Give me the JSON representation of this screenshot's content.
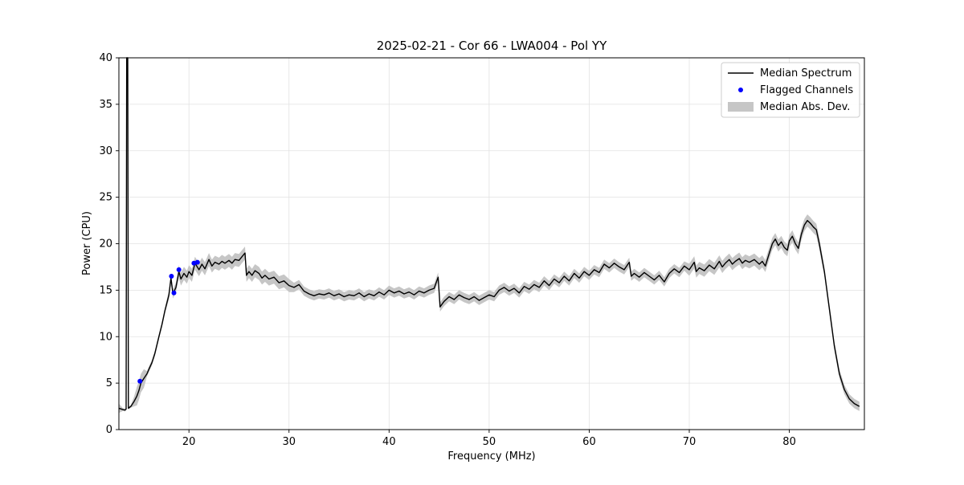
{
  "chart_data": {
    "type": "line",
    "title": "2025-02-21 - Cor 66 - LWA004 - Pol YY",
    "xlabel": "Frequency (MHz)",
    "ylabel": "Power (CPU)",
    "xlim": [
      13,
      87.5
    ],
    "ylim": [
      0,
      40
    ],
    "xticks": [
      20,
      30,
      40,
      50,
      60,
      70,
      80
    ],
    "yticks": [
      0,
      5,
      10,
      15,
      20,
      25,
      30,
      35,
      40
    ],
    "grid": true,
    "legend": {
      "position": "upper right",
      "entries": [
        "Median Spectrum",
        "Flagged Channels",
        "Median Abs. Dev."
      ]
    },
    "colors": {
      "spectrum": "#000000",
      "flagged": "#0000ff",
      "band": "#c6c6c6",
      "grid": "#e2e2e2",
      "frame": "#000000",
      "legend_border": "#cccccc"
    },
    "mad_halfwidth": 0.5,
    "mad_overrides": [
      [
        19,
        30,
        0.7
      ],
      [
        70,
        83,
        0.65
      ],
      [
        15.6,
        17.9,
        0.3
      ],
      [
        14.6,
        15.5,
        1.0
      ],
      [
        13.3,
        14.3,
        0.15
      ]
    ],
    "spectrum": [
      [
        13.0,
        2.3
      ],
      [
        13.4,
        2.15
      ],
      [
        13.6,
        2.1
      ],
      [
        13.72,
        2.2
      ],
      [
        13.78,
        40.0
      ],
      [
        13.88,
        40.0
      ],
      [
        13.95,
        2.3
      ],
      [
        14.2,
        2.5
      ],
      [
        14.5,
        3.0
      ],
      [
        14.8,
        3.6
      ],
      [
        15.0,
        4.2
      ],
      [
        15.2,
        5.0
      ],
      [
        15.5,
        5.5
      ],
      [
        15.8,
        6.0
      ],
      [
        16.0,
        6.5
      ],
      [
        16.3,
        7.2
      ],
      [
        16.6,
        8.2
      ],
      [
        17.0,
        10.0
      ],
      [
        17.3,
        11.3
      ],
      [
        17.6,
        12.8
      ],
      [
        18.0,
        14.5
      ],
      [
        18.2,
        16.3
      ],
      [
        18.4,
        14.6
      ],
      [
        18.7,
        15.3
      ],
      [
        19.0,
        17.0
      ],
      [
        19.2,
        16.2
      ],
      [
        19.5,
        16.8
      ],
      [
        19.8,
        16.4
      ],
      [
        20.0,
        17.0
      ],
      [
        20.3,
        16.6
      ],
      [
        20.6,
        17.9
      ],
      [
        21.0,
        17.2
      ],
      [
        21.3,
        17.8
      ],
      [
        21.6,
        17.3
      ],
      [
        22.0,
        18.3
      ],
      [
        22.3,
        17.6
      ],
      [
        22.6,
        18.0
      ],
      [
        23.0,
        17.8
      ],
      [
        23.3,
        18.1
      ],
      [
        23.6,
        17.9
      ],
      [
        24.0,
        18.2
      ],
      [
        24.3,
        17.9
      ],
      [
        24.6,
        18.3
      ],
      [
        25.0,
        18.2
      ],
      [
        25.3,
        18.6
      ],
      [
        25.6,
        19.0
      ],
      [
        25.75,
        16.6
      ],
      [
        26.0,
        17.0
      ],
      [
        26.3,
        16.6
      ],
      [
        26.6,
        17.1
      ],
      [
        27.0,
        16.8
      ],
      [
        27.3,
        16.3
      ],
      [
        27.6,
        16.6
      ],
      [
        28.0,
        16.2
      ],
      [
        28.5,
        16.4
      ],
      [
        29.0,
        15.8
      ],
      [
        29.5,
        16.0
      ],
      [
        30.0,
        15.5
      ],
      [
        30.5,
        15.3
      ],
      [
        31.0,
        15.6
      ],
      [
        31.5,
        14.9
      ],
      [
        32.0,
        14.6
      ],
      [
        32.5,
        14.4
      ],
      [
        33.0,
        14.6
      ],
      [
        33.5,
        14.5
      ],
      [
        34.0,
        14.7
      ],
      [
        34.5,
        14.4
      ],
      [
        35.0,
        14.6
      ],
      [
        35.5,
        14.3
      ],
      [
        36.0,
        14.5
      ],
      [
        36.5,
        14.4
      ],
      [
        37.0,
        14.7
      ],
      [
        37.5,
        14.3
      ],
      [
        38.0,
        14.6
      ],
      [
        38.5,
        14.4
      ],
      [
        39.0,
        14.8
      ],
      [
        39.5,
        14.5
      ],
      [
        40.0,
        15.0
      ],
      [
        40.5,
        14.7
      ],
      [
        41.0,
        14.9
      ],
      [
        41.5,
        14.6
      ],
      [
        42.0,
        14.8
      ],
      [
        42.5,
        14.5
      ],
      [
        43.0,
        14.9
      ],
      [
        43.5,
        14.7
      ],
      [
        44.0,
        15.0
      ],
      [
        44.5,
        15.2
      ],
      [
        44.9,
        16.4
      ],
      [
        45.1,
        13.2
      ],
      [
        45.5,
        13.8
      ],
      [
        46.0,
        14.3
      ],
      [
        46.5,
        14.0
      ],
      [
        47.0,
        14.5
      ],
      [
        47.5,
        14.2
      ],
      [
        48.0,
        14.0
      ],
      [
        48.5,
        14.3
      ],
      [
        49.0,
        13.9
      ],
      [
        49.5,
        14.2
      ],
      [
        50.0,
        14.5
      ],
      [
        50.5,
        14.3
      ],
      [
        51.0,
        15.0
      ],
      [
        51.5,
        15.3
      ],
      [
        52.0,
        14.9
      ],
      [
        52.5,
        15.2
      ],
      [
        53.0,
        14.7
      ],
      [
        53.5,
        15.4
      ],
      [
        54.0,
        15.1
      ],
      [
        54.5,
        15.6
      ],
      [
        55.0,
        15.3
      ],
      [
        55.5,
        16.0
      ],
      [
        56.0,
        15.5
      ],
      [
        56.5,
        16.2
      ],
      [
        57.0,
        15.8
      ],
      [
        57.5,
        16.5
      ],
      [
        58.0,
        16.0
      ],
      [
        58.5,
        16.8
      ],
      [
        59.0,
        16.3
      ],
      [
        59.5,
        17.0
      ],
      [
        60.0,
        16.6
      ],
      [
        60.5,
        17.2
      ],
      [
        61.0,
        16.9
      ],
      [
        61.5,
        17.8
      ],
      [
        62.0,
        17.4
      ],
      [
        62.5,
        17.9
      ],
      [
        63.0,
        17.5
      ],
      [
        63.5,
        17.2
      ],
      [
        64.0,
        18.0
      ],
      [
        64.2,
        16.5
      ],
      [
        64.5,
        16.8
      ],
      [
        65.0,
        16.4
      ],
      [
        65.5,
        16.9
      ],
      [
        66.0,
        16.5
      ],
      [
        66.5,
        16.1
      ],
      [
        67.0,
        16.6
      ],
      [
        67.5,
        15.9
      ],
      [
        68.0,
        16.8
      ],
      [
        68.5,
        17.3
      ],
      [
        69.0,
        16.9
      ],
      [
        69.5,
        17.6
      ],
      [
        70.0,
        17.2
      ],
      [
        70.5,
        18.0
      ],
      [
        70.7,
        17.0
      ],
      [
        71.0,
        17.4
      ],
      [
        71.5,
        17.1
      ],
      [
        72.0,
        17.7
      ],
      [
        72.5,
        17.3
      ],
      [
        73.0,
        18.1
      ],
      [
        73.3,
        17.5
      ],
      [
        73.6,
        17.9
      ],
      [
        74.0,
        18.3
      ],
      [
        74.3,
        17.8
      ],
      [
        74.6,
        18.1
      ],
      [
        75.0,
        18.4
      ],
      [
        75.3,
        17.9
      ],
      [
        75.6,
        18.2
      ],
      [
        76.0,
        18.0
      ],
      [
        76.5,
        18.3
      ],
      [
        77.0,
        17.8
      ],
      [
        77.3,
        18.1
      ],
      [
        77.6,
        17.6
      ],
      [
        78.0,
        19.0
      ],
      [
        78.3,
        20.0
      ],
      [
        78.6,
        20.5
      ],
      [
        78.9,
        19.8
      ],
      [
        79.2,
        20.2
      ],
      [
        79.5,
        19.6
      ],
      [
        79.8,
        19.3
      ],
      [
        80.0,
        20.3
      ],
      [
        80.3,
        20.8
      ],
      [
        80.6,
        20.0
      ],
      [
        80.9,
        19.5
      ],
      [
        81.2,
        21.0
      ],
      [
        81.5,
        22.0
      ],
      [
        81.8,
        22.5
      ],
      [
        82.1,
        22.2
      ],
      [
        82.4,
        21.8
      ],
      [
        82.7,
        21.5
      ],
      [
        83.0,
        20.0
      ],
      [
        83.5,
        17.0
      ],
      [
        84.0,
        13.0
      ],
      [
        84.5,
        9.0
      ],
      [
        85.0,
        6.0
      ],
      [
        85.5,
        4.3
      ],
      [
        86.0,
        3.3
      ],
      [
        86.5,
        2.8
      ],
      [
        87.0,
        2.5
      ]
    ],
    "flagged_channels": [
      [
        15.1,
        5.2
      ],
      [
        18.25,
        16.5
      ],
      [
        18.5,
        14.7
      ],
      [
        19.0,
        17.2
      ],
      [
        20.5,
        17.9
      ],
      [
        20.85,
        18.0
      ]
    ]
  }
}
